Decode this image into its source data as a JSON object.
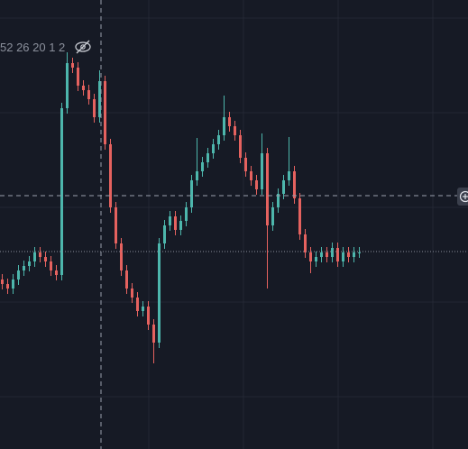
{
  "chart_data": {
    "type": "candlestick",
    "legend_text": "52 26 20 1 2",
    "up_color": "#4db6ac",
    "down_color": "#e5625f",
    "ylim": [
      0,
      498
    ],
    "open": [
      188,
      183,
      178,
      188,
      198,
      203,
      208,
      218,
      213,
      208,
      198,
      193,
      378,
      428,
      423,
      403,
      398,
      388,
      368,
      408,
      338,
      268,
      228,
      198,
      178,
      168,
      153,
      158,
      138,
      118,
      228,
      248,
      258,
      243,
      253,
      268,
      298,
      308,
      318,
      328,
      338,
      348,
      368,
      358,
      348,
      323,
      308,
      298,
      288,
      328,
      248,
      268,
      283,
      298,
      308,
      278,
      238,
      218,
      208,
      213,
      218,
      213,
      223,
      208,
      218,
      213,
      218
    ],
    "high": [
      194,
      189,
      194,
      204,
      209,
      214,
      224,
      224,
      219,
      214,
      204,
      384,
      440,
      434,
      429,
      409,
      404,
      394,
      420,
      414,
      344,
      274,
      234,
      204,
      184,
      174,
      164,
      164,
      144,
      234,
      254,
      264,
      264,
      259,
      274,
      304,
      345,
      324,
      334,
      344,
      354,
      392,
      374,
      364,
      354,
      329,
      314,
      304,
      350,
      334,
      274,
      289,
      304,
      346,
      314,
      284,
      244,
      224,
      219,
      224,
      224,
      229,
      229,
      224,
      224,
      224,
      224
    ],
    "low": [
      177,
      172,
      172,
      182,
      192,
      197,
      202,
      207,
      202,
      192,
      187,
      187,
      372,
      417,
      397,
      392,
      382,
      362,
      362,
      332,
      262,
      222,
      192,
      172,
      162,
      147,
      147,
      132,
      95,
      112,
      222,
      242,
      237,
      237,
      247,
      262,
      292,
      302,
      312,
      322,
      332,
      342,
      352,
      342,
      317,
      302,
      292,
      282,
      282,
      178,
      242,
      262,
      277,
      292,
      272,
      232,
      212,
      195,
      202,
      207,
      207,
      207,
      202,
      202,
      207,
      207,
      212
    ],
    "close": [
      183,
      178,
      188,
      198,
      203,
      208,
      218,
      213,
      208,
      198,
      193,
      378,
      428,
      423,
      403,
      398,
      388,
      368,
      408,
      338,
      268,
      228,
      198,
      178,
      168,
      153,
      158,
      138,
      118,
      228,
      248,
      258,
      243,
      253,
      268,
      298,
      308,
      318,
      328,
      338,
      348,
      368,
      358,
      348,
      323,
      308,
      298,
      288,
      328,
      248,
      268,
      283,
      298,
      308,
      278,
      238,
      218,
      208,
      213,
      218,
      213,
      223,
      208,
      218,
      213,
      218,
      218
    ]
  }
}
